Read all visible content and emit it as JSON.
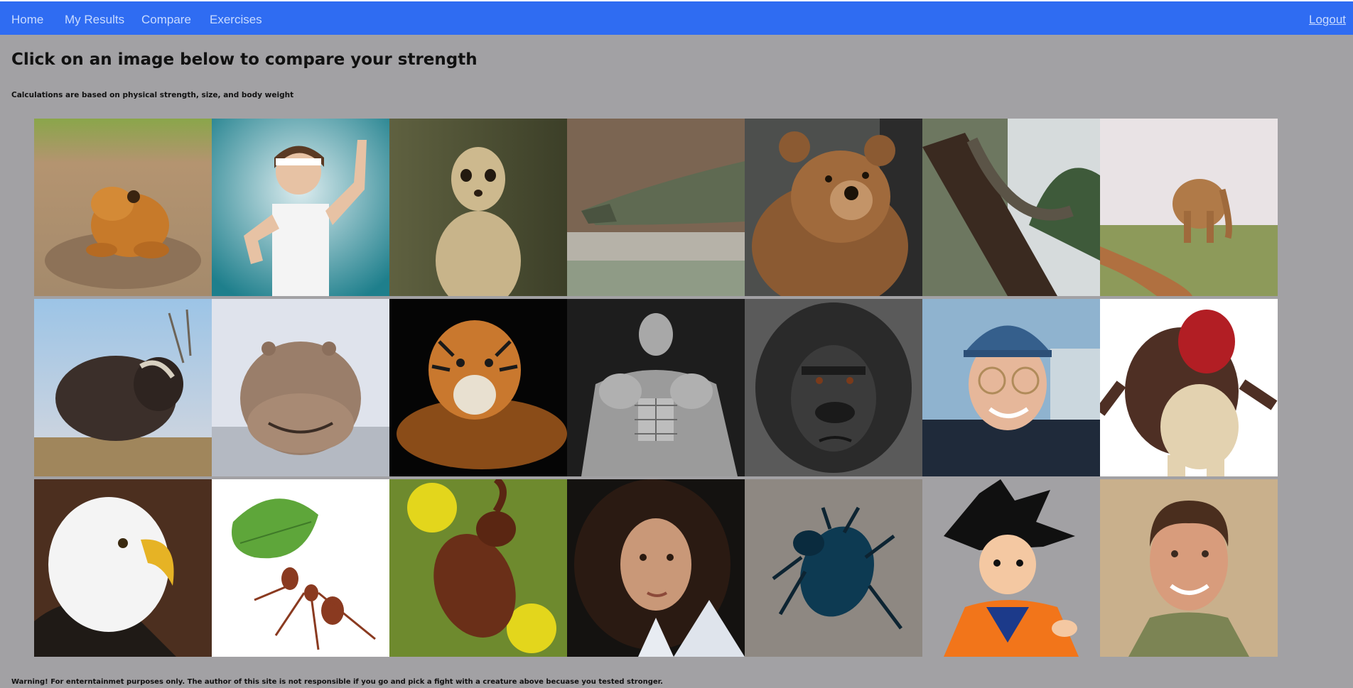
{
  "nav": {
    "home": "Home",
    "my_results": "My Results",
    "compare": "Compare",
    "exercises": "Exercises",
    "logout": "Logout"
  },
  "main": {
    "title": "Click on an image below to compare your strength",
    "subtitle": "Calculations are based on physical strength, size, and body weight",
    "warning": "Warning! For enterntainmet purposes only. The author of this site is not responsible if you go and pick a fight with a creature above becuase you tested stronger."
  },
  "gallery": {
    "images": [
      {
        "subject": "frog"
      },
      {
        "subject": "skinny-man"
      },
      {
        "subject": "meerkat"
      },
      {
        "subject": "crocodile"
      },
      {
        "subject": "bear"
      },
      {
        "subject": "python"
      },
      {
        "subject": "elephant"
      },
      {
        "subject": "musk-ox"
      },
      {
        "subject": "hippo"
      },
      {
        "subject": "tiger"
      },
      {
        "subject": "bodybuilder"
      },
      {
        "subject": "gorilla"
      },
      {
        "subject": "man-in-cap"
      },
      {
        "subject": "cartoon-monster"
      },
      {
        "subject": "eagle"
      },
      {
        "subject": "leafcutter-ant"
      },
      {
        "subject": "rhinoceros-beetle"
      },
      {
        "subject": "curly-haired-woman"
      },
      {
        "subject": "dung-beetle"
      },
      {
        "subject": "goku"
      },
      {
        "subject": "smiling-man"
      }
    ]
  },
  "colors": {
    "navbar": "#2f6cf2",
    "nav_link": "#c9dbff",
    "background": "#a2a1a4"
  }
}
